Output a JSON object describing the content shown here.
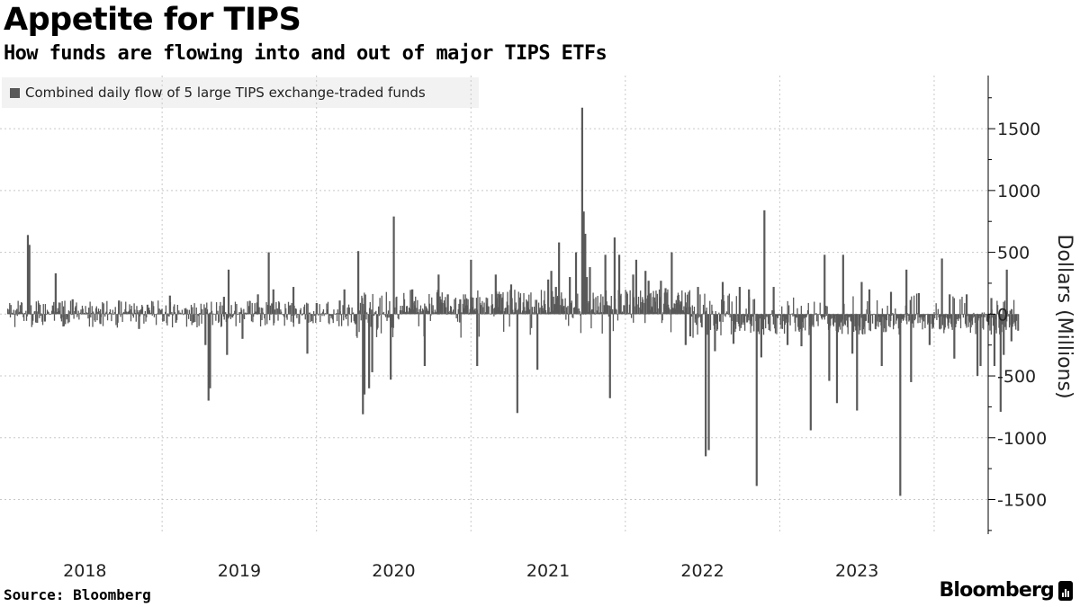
{
  "title": "Appetite for TIPS",
  "subtitle": "How funds are flowing into and out of major TIPS ETFs",
  "legend_label": "Combined daily flow of 5 large TIPS exchange-traded funds",
  "source": "Source: Bloomberg",
  "brand": "Bloomberg",
  "colors": {
    "bar": "#595959",
    "grid": "#c8c8c8",
    "axis": "#000000",
    "legend_bg": "#f2f2f2"
  },
  "chart_data": {
    "type": "bar",
    "title": "Appetite for TIPS",
    "subtitle": "How funds are flowing into and out of major TIPS ETFs",
    "ylabel": "Dollars (Millions)",
    "xlabel": "",
    "ylim": [
      -1780,
      1930
    ],
    "yticks": [
      1500,
      1000,
      500,
      0,
      -500,
      -1000,
      -1500
    ],
    "ytick_labels": [
      "1500",
      "1000",
      "500",
      "0",
      "-500",
      "-1000",
      "-1500"
    ],
    "xlim": [
      2017.95,
      2024.35
    ],
    "xtick_labels": [
      "2018",
      "2019",
      "2020",
      "2021",
      "2022",
      "2023"
    ],
    "xtick_label_positions": [
      2018.5,
      2019.5,
      2020.5,
      2021.5,
      2022.5,
      2023.5
    ],
    "year_boundaries": [
      2019,
      2020,
      2021,
      2022,
      2023,
      2024
    ],
    "legend": "top-left",
    "grid": true,
    "series": [
      {
        "name": "Combined daily flow of 5 large TIPS exchange-traded funds",
        "points": [
          [
            2018.13,
            640
          ],
          [
            2018.14,
            560
          ],
          [
            2018.19,
            -70
          ],
          [
            2018.24,
            -60
          ],
          [
            2018.31,
            330
          ],
          [
            2018.36,
            -100
          ],
          [
            2018.42,
            120
          ],
          [
            2018.6,
            -80
          ],
          [
            2018.72,
            110
          ],
          [
            2018.85,
            -120
          ],
          [
            2019.05,
            150
          ],
          [
            2019.28,
            -250
          ],
          [
            2019.3,
            -700
          ],
          [
            2019.31,
            -600
          ],
          [
            2019.4,
            140
          ],
          [
            2019.42,
            -330
          ],
          [
            2019.43,
            360
          ],
          [
            2019.52,
            -200
          ],
          [
            2019.62,
            160
          ],
          [
            2019.69,
            500
          ],
          [
            2019.72,
            200
          ],
          [
            2019.85,
            220
          ],
          [
            2019.94,
            -320
          ],
          [
            2020.0,
            90
          ],
          [
            2020.15,
            110
          ],
          [
            2020.18,
            200
          ],
          [
            2020.27,
            510
          ],
          [
            2020.3,
            -810
          ],
          [
            2020.31,
            -650
          ],
          [
            2020.34,
            -600
          ],
          [
            2020.36,
            -470
          ],
          [
            2020.48,
            -530
          ],
          [
            2020.5,
            790
          ],
          [
            2020.62,
            200
          ],
          [
            2020.7,
            -420
          ],
          [
            2020.79,
            320
          ],
          [
            2020.85,
            160
          ],
          [
            2020.93,
            120
          ],
          [
            2021.0,
            440
          ],
          [
            2021.04,
            -420
          ],
          [
            2021.16,
            320
          ],
          [
            2021.26,
            240
          ],
          [
            2021.3,
            -800
          ],
          [
            2021.43,
            -450
          ],
          [
            2021.5,
            280
          ],
          [
            2021.52,
            350
          ],
          [
            2021.55,
            220
          ],
          [
            2021.57,
            580
          ],
          [
            2021.64,
            300
          ],
          [
            2021.68,
            500
          ],
          [
            2021.72,
            1670
          ],
          [
            2021.73,
            830
          ],
          [
            2021.74,
            650
          ],
          [
            2021.75,
            300
          ],
          [
            2021.77,
            380
          ],
          [
            2021.87,
            480
          ],
          [
            2021.9,
            -680
          ],
          [
            2021.93,
            620
          ],
          [
            2021.96,
            480
          ],
          [
            2022.05,
            320
          ],
          [
            2022.07,
            440
          ],
          [
            2022.13,
            350
          ],
          [
            2022.15,
            270
          ],
          [
            2022.23,
            270
          ],
          [
            2022.26,
            210
          ],
          [
            2022.3,
            500
          ],
          [
            2022.34,
            150
          ],
          [
            2022.39,
            -250
          ],
          [
            2022.42,
            -180
          ],
          [
            2022.47,
            220
          ],
          [
            2022.52,
            -1150
          ],
          [
            2022.54,
            -1100
          ],
          [
            2022.58,
            -300
          ],
          [
            2022.63,
            260
          ],
          [
            2022.7,
            -240
          ],
          [
            2022.74,
            220
          ],
          [
            2022.8,
            200
          ],
          [
            2022.85,
            -1390
          ],
          [
            2022.88,
            -350
          ],
          [
            2022.9,
            840
          ],
          [
            2022.96,
            220
          ],
          [
            2023.05,
            -250
          ],
          [
            2023.14,
            -260
          ],
          [
            2023.2,
            -940
          ],
          [
            2023.29,
            480
          ],
          [
            2023.32,
            -540
          ],
          [
            2023.37,
            -720
          ],
          [
            2023.41,
            480
          ],
          [
            2023.47,
            -320
          ],
          [
            2023.5,
            -780
          ],
          [
            2023.53,
            260
          ],
          [
            2023.58,
            200
          ],
          [
            2023.66,
            -420
          ],
          [
            2023.72,
            180
          ],
          [
            2023.78,
            -1470
          ],
          [
            2023.82,
            360
          ],
          [
            2023.85,
            -550
          ],
          [
            2023.9,
            170
          ],
          [
            2023.97,
            -250
          ],
          [
            2024.05,
            450
          ],
          [
            2024.1,
            160
          ],
          [
            2024.13,
            -360
          ],
          [
            2024.21,
            160
          ],
          [
            2024.28,
            -500
          ],
          [
            2024.3,
            -420
          ],
          [
            2024.37,
            130
          ],
          [
            2024.39,
            -420
          ],
          [
            2024.43,
            -790
          ],
          [
            2024.45,
            -330
          ],
          [
            2024.47,
            360
          ],
          [
            2024.5,
            -220
          ]
        ]
      }
    ]
  }
}
